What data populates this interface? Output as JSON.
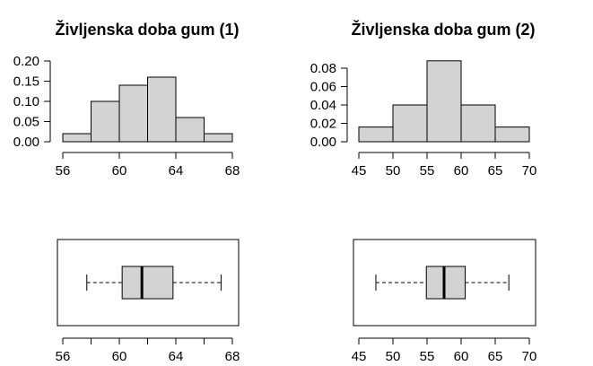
{
  "colors": {
    "fill": "#d3d3d3",
    "stroke": "#000000",
    "background": "#ffffff"
  },
  "chart_data": [
    {
      "type": "histogram",
      "title": "Življenska doba gum (1)",
      "bins": [
        56,
        58,
        60,
        62,
        64,
        66,
        68
      ],
      "density": [
        0.02,
        0.1,
        0.14,
        0.16,
        0.06,
        0.02
      ],
      "ylim": [
        0,
        0.2
      ],
      "yticks": [
        0.0,
        0.05,
        0.1,
        0.15,
        0.2
      ],
      "ytick_labels": [
        "0.00",
        "0.05",
        "0.10",
        "0.15",
        "0.20"
      ],
      "xticks": [
        56,
        60,
        64,
        68
      ],
      "xtick_labels": [
        "56",
        "60",
        "64",
        "68"
      ],
      "xlim": [
        56,
        68
      ]
    },
    {
      "type": "histogram",
      "title": "Življenska doba gum (2)",
      "bins": [
        45,
        50,
        55,
        60,
        65,
        70
      ],
      "density": [
        0.016,
        0.04,
        0.088,
        0.04,
        0.016
      ],
      "ylim": [
        0,
        0.08
      ],
      "yticks": [
        0.0,
        0.02,
        0.04,
        0.06,
        0.08
      ],
      "ytick_labels": [
        "0.00",
        "0.02",
        "0.04",
        "0.06",
        "0.08"
      ],
      "xticks": [
        45,
        50,
        55,
        60,
        65,
        70
      ],
      "xtick_labels": [
        "45",
        "50",
        "55",
        "60",
        "65",
        "70"
      ],
      "xlim": [
        45,
        70
      ]
    },
    {
      "type": "boxplot",
      "orientation": "horizontal",
      "whisker_low": 57.7,
      "q1": 60.2,
      "median": 61.6,
      "q3": 63.8,
      "whisker_high": 67.2,
      "xlim": [
        56,
        68
      ],
      "xticks": [
        56,
        58,
        60,
        62,
        64,
        66,
        68
      ],
      "xtick_labels": [
        "56",
        "",
        "60",
        "",
        "64",
        "",
        "68"
      ]
    },
    {
      "type": "boxplot",
      "orientation": "horizontal",
      "whisker_low": 47.5,
      "q1": 54.9,
      "median": 57.5,
      "q3": 60.6,
      "whisker_high": 67.0,
      "xlim": [
        45,
        70
      ],
      "xticks": [
        45,
        50,
        55,
        60,
        65,
        70
      ],
      "xtick_labels": [
        "45",
        "50",
        "55",
        "60",
        "65",
        "70"
      ]
    }
  ]
}
